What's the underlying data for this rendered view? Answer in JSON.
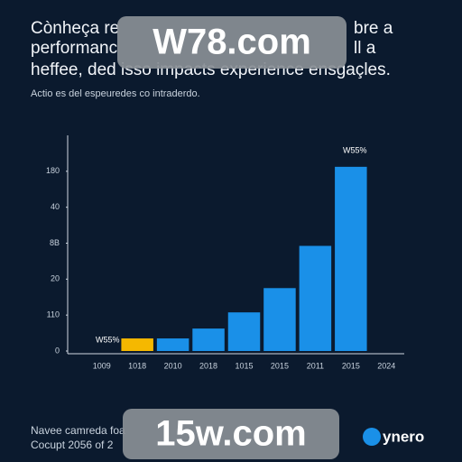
{
  "chart_data": {
    "type": "bar",
    "title_lines": [
      "Cònheça re",
      "performanc",
      "heffee, ded isso impacts experience ensgaçles."
    ],
    "title_right": [
      "bre a",
      "ll a"
    ],
    "subtitle": "Actio es del espeuredes co intraderdo.",
    "categories": [
      "1009",
      "1018",
      "2010",
      "2018",
      "1015",
      "2015",
      "2011",
      "2015",
      "2024"
    ],
    "values": [
      null,
      3.5,
      3.5,
      6.25,
      10.75,
      17.5,
      29.25,
      51.25,
      null
    ],
    "colors": [
      "#1a90e8",
      "#f5b800",
      "#1a90e8",
      "#1a90e8",
      "#1a90e8",
      "#1a90e8",
      "#1a90e8",
      "#1a90e8",
      "#1a90e8"
    ],
    "ylim": [
      0,
      60
    ],
    "yticks": [
      0,
      {
        "value": 10,
        "label": "110"
      },
      20,
      {
        "value": 30,
        "label": "8B"
      },
      40,
      {
        "value": 50,
        "label": "180"
      }
    ],
    "annotations": [
      "W55%",
      "W55%"
    ],
    "footer": [
      "Navee camreda foa",
      "Cocupt 2056 of 2"
    ],
    "brand": "ynero",
    "watermarks": [
      "W78.com",
      "15w.com"
    ]
  }
}
